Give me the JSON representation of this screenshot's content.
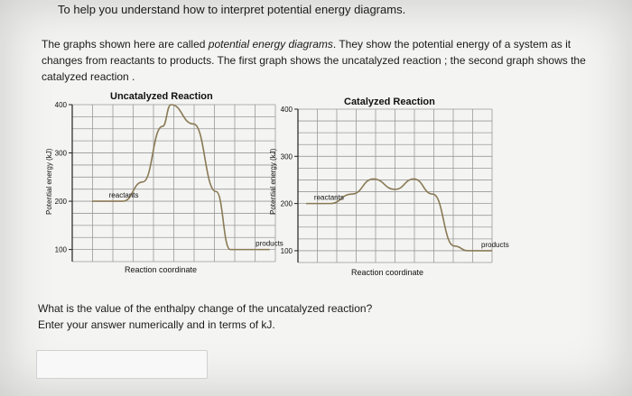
{
  "header": {
    "title": "To help you understand how to interpret potential energy diagrams."
  },
  "intro": {
    "part1": "The graphs shown here are called ",
    "emphasis": "potential energy diagrams",
    "part2": ". They show the potential energy of a system as it changes from reactants to products. The first graph shows the uncatalyzed reaction ; the second graph shows the catalyzed reaction ."
  },
  "question": {
    "line1": "What is the value of the enthalpy change of the uncatalyzed reaction?",
    "line2": "Enter your answer numerically and in terms of kJ."
  },
  "answer": {
    "value": ""
  },
  "chart_data": [
    {
      "type": "line",
      "title": "Uncatalyzed Reaction",
      "xlabel": "Reaction coordinate",
      "ylabel": "Potential energy (kJ)",
      "ylim": [
        75,
        400
      ],
      "yticks": [
        100,
        200,
        300,
        400
      ],
      "grid": true,
      "annotations": [
        {
          "text": "reactants",
          "x": 1.3,
          "y": 200
        },
        {
          "text": "products",
          "x": 6.5,
          "y": 100
        }
      ],
      "series": [
        {
          "x": [
            0.7,
            1.8,
            2.5,
            3.2,
            3.5,
            4.3,
            5.1,
            5.6,
            7.0
          ],
          "y": [
            200,
            200,
            240,
            355,
            400,
            360,
            220,
            100,
            100
          ]
        }
      ]
    },
    {
      "type": "line",
      "title": "Catalyzed Reaction",
      "xlabel": "Reaction coordinate",
      "ylabel": "Potential energy (kJ)",
      "ylim": [
        75,
        400
      ],
      "yticks": [
        100,
        200,
        300,
        400
      ],
      "grid": true,
      "annotations": [
        {
          "text": "reactants",
          "x": 0.6,
          "y": 200
        },
        {
          "text": "products",
          "x": 6.8,
          "y": 100
        }
      ],
      "series": [
        {
          "x": [
            0.3,
            1.2,
            2.0,
            2.8,
            3.6,
            4.3,
            5.0,
            5.8,
            6.3,
            7.2
          ],
          "y": [
            200,
            200,
            220,
            252,
            230,
            252,
            220,
            110,
            100,
            100
          ]
        }
      ]
    }
  ]
}
